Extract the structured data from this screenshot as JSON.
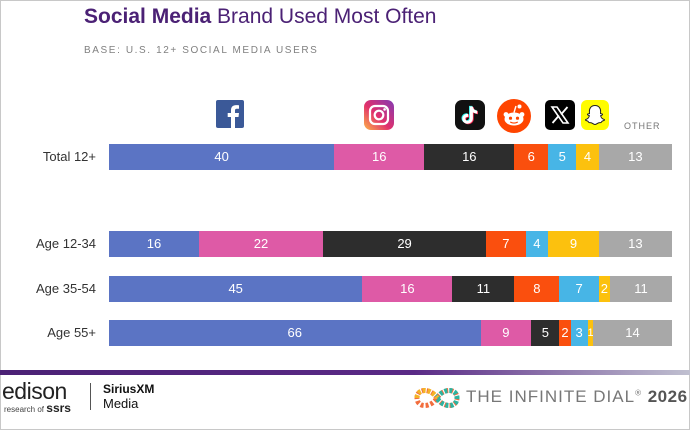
{
  "header": {
    "title_bold": "Social Media",
    "title_rest": " Brand Used Most Often",
    "subtitle": "BASE: U.S. 12+ SOCIAL MEDIA USERS"
  },
  "legend": {
    "icons": [
      "facebook-icon",
      "instagram-icon",
      "tiktok-icon",
      "reddit-icon",
      "x-icon",
      "snapchat-icon"
    ],
    "other_label": "OTHER"
  },
  "colors": {
    "facebook": "#5b74c4",
    "instagram": "#de5aa6",
    "tiktok": "#2d2d2d",
    "reddit": "#fa4f0e",
    "x": "#47b5e6",
    "snapchat": "#fcc10e",
    "other": "#a8a8a8"
  },
  "chart_data": {
    "type": "bar",
    "orientation": "horizontal",
    "stacked": true,
    "title": "Social Media Brand Used Most Often",
    "subtitle": "BASE: U.S. 12+ SOCIAL MEDIA USERS",
    "series_names": [
      "Facebook",
      "Instagram",
      "TikTok",
      "Reddit",
      "X",
      "Snapchat",
      "OTHER"
    ],
    "rows": [
      {
        "label": "Total 12+",
        "values": [
          40,
          16,
          16,
          6,
          5,
          4,
          13
        ]
      },
      {
        "label": "Age 12-34",
        "values": [
          16,
          22,
          29,
          7,
          4,
          9,
          13
        ]
      },
      {
        "label": "Age 35-54",
        "values": [
          45,
          16,
          11,
          8,
          7,
          2,
          11
        ]
      },
      {
        "label": "Age 55+",
        "values": [
          66,
          9,
          5,
          2,
          3,
          1,
          14
        ]
      }
    ],
    "xlim": [
      0,
      100
    ]
  },
  "footer": {
    "edison": "edison",
    "edison_sub_small": "research of",
    "edison_sub_bold": "ssrs",
    "sirius": "SiriusXM",
    "sirius_sub": "Media",
    "dial": "THE INFINITE DIAL",
    "dial_mark": "®",
    "year": "2026"
  }
}
